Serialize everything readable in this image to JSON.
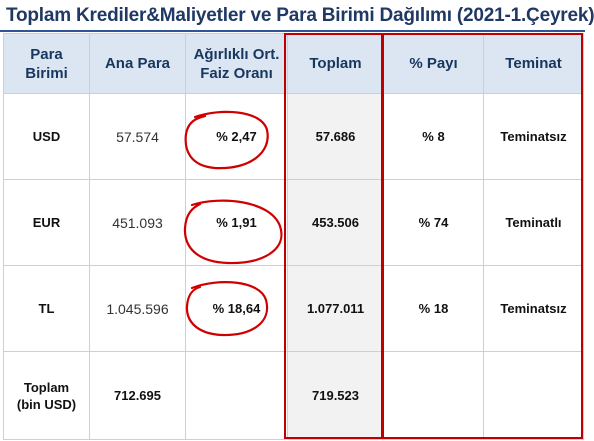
{
  "title": "Toplam Krediler&Maliyetler ve Para Birimi Dağılımı (2021-1.Çeyrek)",
  "headers": {
    "currency": [
      "Para",
      "Birimi"
    ],
    "principal": "Ana Para",
    "rate": [
      "Ağırlıklı Ort.",
      "Faiz Oranı"
    ],
    "total": "Toplam",
    "share": "% Payı",
    "collateral": "Teminat"
  },
  "rows": [
    {
      "currency": "USD",
      "principal": "57.574",
      "rate": "% 2,47",
      "total": "57.686",
      "share": "% 8",
      "collateral": "Teminatsız"
    },
    {
      "currency": "EUR",
      "principal": "451.093",
      "rate": "% 1,91",
      "total": "453.506",
      "share": "% 74",
      "collateral": "Teminatlı"
    },
    {
      "currency": "TL",
      "principal": "1.045.596",
      "rate": "% 18,64",
      "total": "1.077.011",
      "share": "% 18",
      "collateral": "Teminatsız"
    }
  ],
  "footer": {
    "label": [
      "Toplam",
      "(bin USD)"
    ],
    "principal": "712.695",
    "total": "719.523"
  },
  "colors": {
    "title": "#1f3864",
    "header_bg": "#dce6f2",
    "highlight": "#c00000"
  }
}
